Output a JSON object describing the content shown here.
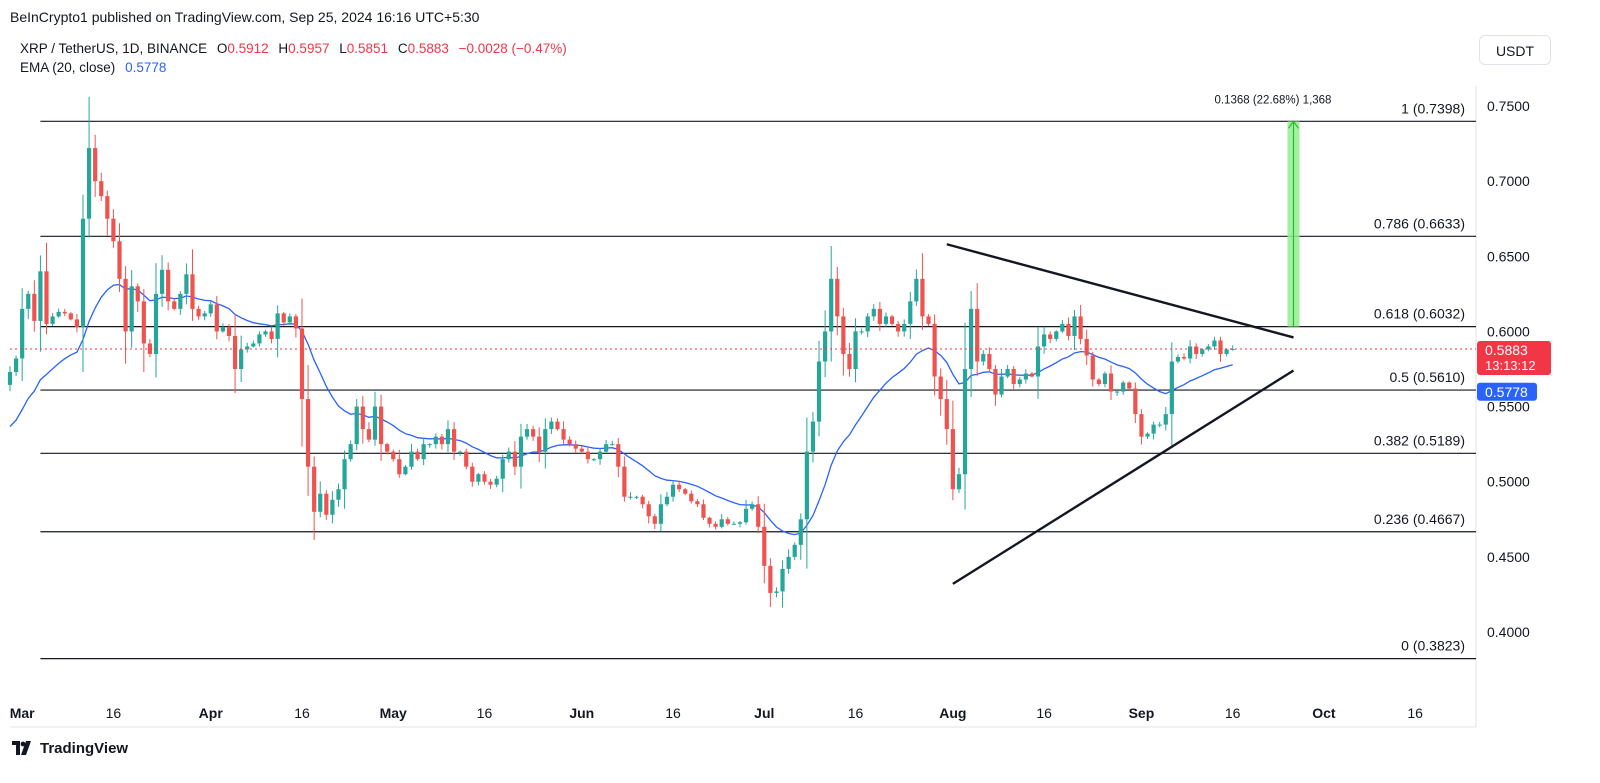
{
  "header": {
    "published": "BeInCrypto1 published on TradingView.com, Sep 25, 2024 16:16 UTC+5:30"
  },
  "legend": {
    "symbol": "XRP / TetherUS, 1D, BINANCE",
    "o_label": "O",
    "o_value": "0.5912",
    "h_label": "H",
    "h_value": "0.5957",
    "l_label": "L",
    "l_value": "0.5851",
    "c_label": "C",
    "c_value": "0.5883",
    "change": "−0.0028 (−0.47%)",
    "ema_label": "EMA (20, close)",
    "ema_value": "0.5778"
  },
  "currency_button": "USDT",
  "brand": "TradingView",
  "colors": {
    "up": "#26a69a",
    "down": "#ef5350",
    "ema": "#2962ff",
    "price_badge": "#f23645",
    "ema_badge": "#2962ff",
    "measure_fill": "#90ee90",
    "measure_line": "#2eb82e"
  },
  "chart_data": {
    "type": "candlestick",
    "title": "",
    "xlabel": "",
    "ylabel": "",
    "ylim": [
      0.373,
      0.757
    ],
    "grid": false,
    "y_ticks": [
      "0.4000",
      "0.4500",
      "0.5000",
      "0.5500",
      "0.6000",
      "0.6500",
      "0.7000",
      "0.7500"
    ],
    "x_ticks": [
      {
        "label": "Mar",
        "date": "2024-03-01"
      },
      {
        "label": "16",
        "date": "2024-03-16"
      },
      {
        "label": "Apr",
        "date": "2024-04-01"
      },
      {
        "label": "16",
        "date": "2024-04-16"
      },
      {
        "label": "May",
        "date": "2024-05-01"
      },
      {
        "label": "16",
        "date": "2024-05-16"
      },
      {
        "label": "Jun",
        "date": "2024-06-01"
      },
      {
        "label": "16",
        "date": "2024-06-16"
      },
      {
        "label": "Jul",
        "date": "2024-07-01"
      },
      {
        "label": "16",
        "date": "2024-07-16"
      },
      {
        "label": "Aug",
        "date": "2024-08-01"
      },
      {
        "label": "16",
        "date": "2024-08-16"
      },
      {
        "label": "Sep",
        "date": "2024-09-01"
      },
      {
        "label": "16",
        "date": "2024-09-16"
      },
      {
        "label": "Oct",
        "date": "2024-10-01"
      },
      {
        "label": "16",
        "date": "2024-10-16"
      }
    ],
    "x_range": [
      "2024-02-28",
      "2024-10-26"
    ],
    "fib_levels": [
      {
        "label": "1 (0.7398)",
        "value": 0.7398
      },
      {
        "label": "0.786 (0.6633)",
        "value": 0.6633
      },
      {
        "label": "0.618 (0.6032)",
        "value": 0.6032
      },
      {
        "label": "0.5 (0.5610)",
        "value": 0.561
      },
      {
        "label": "0.382 (0.5189)",
        "value": 0.5189
      },
      {
        "label": "0.236 (0.4667)",
        "value": 0.4667
      },
      {
        "label": "0 (0.3823)",
        "value": 0.3823
      }
    ],
    "fib_start_date": "2024-03-04",
    "trendlines": [
      {
        "name": "upper",
        "from": {
          "date": "2024-07-31",
          "value": 0.658
        },
        "to": {
          "date": "2024-09-26",
          "value": 0.596
        }
      },
      {
        "name": "lower",
        "from": {
          "date": "2024-08-01",
          "value": 0.432
        },
        "to": {
          "date": "2024-09-26",
          "value": 0.574
        }
      }
    ],
    "measure": {
      "from_date": "2024-09-25",
      "to_date": "2024-09-26",
      "from_value": 0.6032,
      "to_value": 0.7398,
      "label": "0.1368 (22.68%) 1,368"
    },
    "last_price": {
      "value": 0.5883,
      "label": "0.5883",
      "countdown": "13:13:12"
    },
    "ema_last": {
      "value": 0.5778,
      "label": "0.5778"
    },
    "start_date": "2024-02-28",
    "closes": [
      0.573,
      0.582,
      0.615,
      0.625,
      0.607,
      0.64,
      0.605,
      0.61,
      0.613,
      0.612,
      0.608,
      0.603,
      0.675,
      0.722,
      0.7,
      0.69,
      0.675,
      0.66,
      0.635,
      0.6,
      0.63,
      0.62,
      0.592,
      0.585,
      0.625,
      0.641,
      0.62,
      0.615,
      0.625,
      0.638,
      0.615,
      0.61,
      0.612,
      0.618,
      0.6,
      0.603,
      0.597,
      0.575,
      0.588,
      0.59,
      0.592,
      0.598,
      0.6,
      0.595,
      0.612,
      0.606,
      0.61,
      0.602,
      0.555,
      0.51,
      0.48,
      0.492,
      0.478,
      0.488,
      0.495,
      0.515,
      0.525,
      0.55,
      0.535,
      0.528,
      0.55,
      0.525,
      0.52,
      0.515,
      0.505,
      0.51,
      0.52,
      0.515,
      0.525,
      0.525,
      0.53,
      0.525,
      0.535,
      0.52,
      0.52,
      0.51,
      0.5,
      0.505,
      0.5,
      0.498,
      0.502,
      0.515,
      0.52,
      0.51,
      0.53,
      0.535,
      0.53,
      0.52,
      0.535,
      0.54,
      0.535,
      0.528,
      0.525,
      0.522,
      0.52,
      0.515,
      0.515,
      0.52,
      0.525,
      0.525,
      0.51,
      0.49,
      0.49,
      0.49,
      0.485,
      0.477,
      0.472,
      0.485,
      0.49,
      0.498,
      0.495,
      0.492,
      0.487,
      0.485,
      0.476,
      0.472,
      0.47,
      0.475,
      0.472,
      0.472,
      0.473,
      0.482,
      0.485,
      0.47,
      0.444,
      0.426,
      0.427,
      0.442,
      0.45,
      0.458,
      0.475,
      0.52,
      0.54,
      0.58,
      0.6,
      0.635,
      0.61,
      0.585,
      0.575,
      0.6,
      0.6,
      0.61,
      0.615,
      0.605,
      0.61,
      0.605,
      0.6,
      0.605,
      0.62,
      0.635,
      0.61,
      0.605,
      0.57,
      0.555,
      0.535,
      0.495,
      0.505,
      0.575,
      0.615,
      0.58,
      0.585,
      0.575,
      0.558,
      0.57,
      0.575,
      0.565,
      0.568,
      0.572,
      0.57,
      0.59,
      0.598,
      0.595,
      0.6,
      0.605,
      0.597,
      0.61,
      0.595,
      0.584,
      0.568,
      0.565,
      0.572,
      0.56,
      0.56,
      0.566,
      0.562,
      0.545,
      0.53,
      0.532,
      0.538,
      0.538,
      0.545,
      0.58,
      0.583,
      0.582,
      0.59,
      0.585,
      0.588,
      0.59,
      0.594,
      0.585,
      0.588,
      0.5883
    ]
  }
}
